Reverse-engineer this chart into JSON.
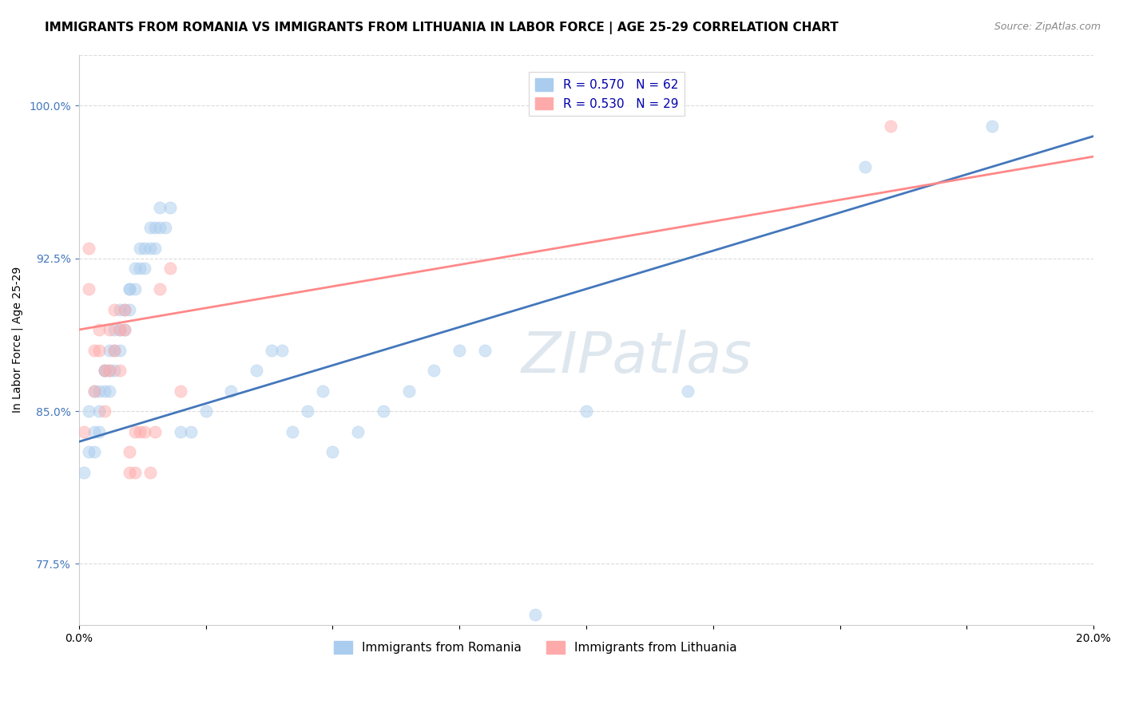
{
  "title": "IMMIGRANTS FROM ROMANIA VS IMMIGRANTS FROM LITHUANIA IN LABOR FORCE | AGE 25-29 CORRELATION CHART",
  "source": "Source: ZipAtlas.com",
  "xlabel": "",
  "ylabel": "In Labor Force | Age 25-29",
  "legend_entries": [
    {
      "label": "R = 0.570   N = 62",
      "color": "#6699cc"
    },
    {
      "label": "R = 0.530   N = 29",
      "color": "#ff9999"
    }
  ],
  "legend_labels_bottom": [
    "Immigrants from Romania",
    "Immigrants from Lithuania"
  ],
  "xmin": 0.0,
  "xmax": 0.2,
  "ymin": 0.745,
  "ymax": 1.025,
  "yticks": [
    0.775,
    0.85,
    0.925,
    1.0
  ],
  "ytick_labels": [
    "77.5%",
    "85.0%",
    "92.5%",
    "100.0%"
  ],
  "xticks": [
    0.0,
    0.025,
    0.05,
    0.075,
    0.1,
    0.125,
    0.15,
    0.175,
    0.2
  ],
  "xtick_labels": [
    "0.0%",
    "",
    "",
    "",
    "",
    "",
    "",
    "",
    "20.0%"
  ],
  "grid_color": "#cccccc",
  "background_color": "#ffffff",
  "romania_color": "#aaccee",
  "lithuania_color": "#ffaaaa",
  "romania_line_color": "#4477bb",
  "lithuania_line_color": "#ff8888",
  "romania_x": [
    0.001,
    0.002,
    0.002,
    0.003,
    0.003,
    0.003,
    0.004,
    0.004,
    0.004,
    0.005,
    0.005,
    0.005,
    0.006,
    0.006,
    0.006,
    0.007,
    0.007,
    0.007,
    0.008,
    0.008,
    0.008,
    0.009,
    0.009,
    0.01,
    0.01,
    0.01,
    0.011,
    0.011,
    0.012,
    0.012,
    0.013,
    0.013,
    0.014,
    0.014,
    0.015,
    0.015,
    0.016,
    0.016,
    0.017,
    0.018,
    0.02,
    0.022,
    0.025,
    0.03,
    0.035,
    0.038,
    0.04,
    0.042,
    0.045,
    0.048,
    0.05,
    0.055,
    0.06,
    0.065,
    0.07,
    0.075,
    0.08,
    0.09,
    0.1,
    0.12,
    0.155,
    0.18
  ],
  "romania_y": [
    0.82,
    0.83,
    0.85,
    0.84,
    0.86,
    0.83,
    0.84,
    0.85,
    0.86,
    0.87,
    0.86,
    0.87,
    0.88,
    0.86,
    0.87,
    0.87,
    0.88,
    0.89,
    0.88,
    0.89,
    0.9,
    0.89,
    0.9,
    0.91,
    0.9,
    0.91,
    0.91,
    0.92,
    0.92,
    0.93,
    0.93,
    0.92,
    0.93,
    0.94,
    0.93,
    0.94,
    0.94,
    0.95,
    0.94,
    0.95,
    0.84,
    0.84,
    0.85,
    0.86,
    0.87,
    0.88,
    0.88,
    0.84,
    0.85,
    0.86,
    0.83,
    0.84,
    0.85,
    0.86,
    0.87,
    0.88,
    0.88,
    0.75,
    0.85,
    0.86,
    0.97,
    0.99
  ],
  "lithuania_x": [
    0.001,
    0.002,
    0.002,
    0.003,
    0.003,
    0.004,
    0.004,
    0.005,
    0.005,
    0.006,
    0.006,
    0.007,
    0.007,
    0.008,
    0.008,
    0.009,
    0.009,
    0.01,
    0.01,
    0.011,
    0.011,
    0.012,
    0.013,
    0.014,
    0.015,
    0.016,
    0.018,
    0.02,
    0.16
  ],
  "lithuania_y": [
    0.84,
    0.93,
    0.91,
    0.86,
    0.88,
    0.88,
    0.89,
    0.85,
    0.87,
    0.87,
    0.89,
    0.88,
    0.9,
    0.87,
    0.89,
    0.89,
    0.9,
    0.82,
    0.83,
    0.82,
    0.84,
    0.84,
    0.84,
    0.82,
    0.84,
    0.91,
    0.92,
    0.86,
    0.99
  ],
  "romania_trendline_x": [
    0.0,
    0.2
  ],
  "romania_trendline_y": [
    0.835,
    0.985
  ],
  "lithuania_trendline_x": [
    0.0,
    0.2
  ],
  "lithuania_trendline_y": [
    0.89,
    0.975
  ],
  "watermark": "ZIPatlas",
  "title_fontsize": 11,
  "axis_label_fontsize": 10,
  "tick_fontsize": 10,
  "legend_fontsize": 11,
  "source_fontsize": 9,
  "marker_size": 120,
  "marker_alpha": 0.5,
  "line_width": 2.0
}
